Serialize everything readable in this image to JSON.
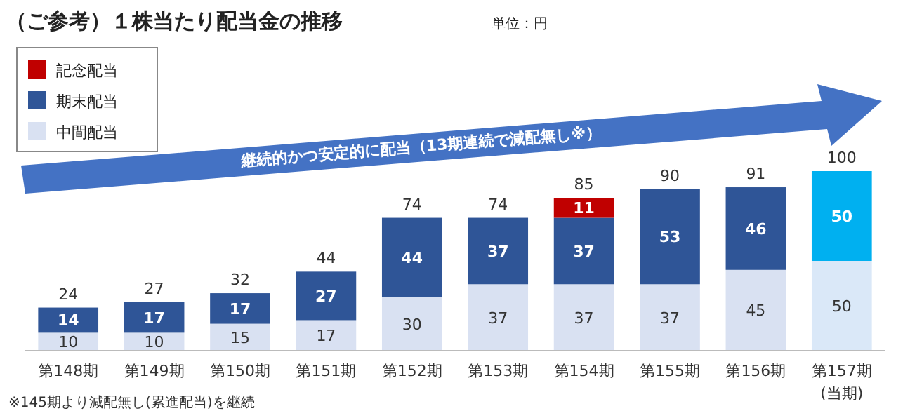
{
  "chart_data": {
    "type": "bar",
    "title": "（ご参考）１株当たり配当金の推移",
    "subtitle": "単位：円",
    "categories": [
      "第148期",
      "第149期",
      "第150期",
      "第151期",
      "第152期",
      "第153期",
      "第154期",
      "第155期",
      "第156期",
      "第157期\n(当期)"
    ],
    "stacked": true,
    "data_labels": true,
    "legend": "top left",
    "series": [
      {
        "name": "中間配当",
        "color": "#d9e1f2",
        "values": [
          10,
          10,
          15,
          17,
          30,
          37,
          37,
          37,
          45,
          50
        ],
        "colors": [
          "#d9e1f2",
          "#d9e1f2",
          "#d9e1f2",
          "#d9e1f2",
          "#d9e1f2",
          "#d9e1f2",
          "#d9e1f2",
          "#d9e1f2",
          "#d9e1f2",
          "#dae8f8"
        ]
      },
      {
        "name": "期末配当",
        "color": "#2f5597",
        "values": [
          14,
          17,
          17,
          27,
          44,
          37,
          37,
          53,
          46,
          50
        ],
        "colors": [
          "#2f5597",
          "#2f5597",
          "#2f5597",
          "#2f5597",
          "#2f5597",
          "#2f5597",
          "#2f5597",
          "#2f5597",
          "#2f5597",
          "#00b0f0"
        ]
      },
      {
        "name": "記念配当",
        "color": "#c00000",
        "values": [
          null,
          null,
          null,
          null,
          null,
          null,
          11,
          null,
          null,
          null
        ]
      }
    ],
    "totals": [
      "24",
      "27",
      "32",
      "44",
      "74",
      "74",
      "85",
      "90",
      "91",
      "100"
    ],
    "annotations": [
      "継続的かつ安定的に配当（13期連続で減配無し※）",
      "※145期より減配無し(累進配当)を継続"
    ]
  }
}
